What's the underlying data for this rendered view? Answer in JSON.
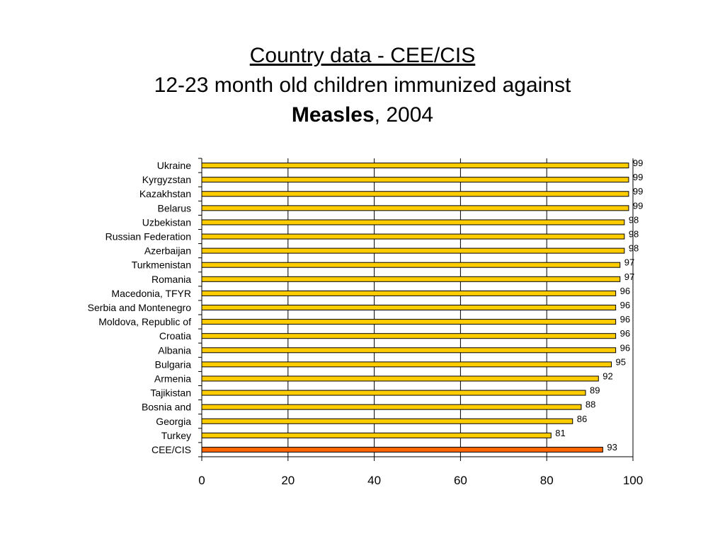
{
  "title": {
    "line1": "Country data - CEE/CIS",
    "line2": "12-23 month old children immunized against",
    "line3_bold": "Measles",
    "line3_rest": ", 2004"
  },
  "colors": {
    "bar": "#ffcc00",
    "highlight": "#ff6600",
    "outline": "#000000"
  },
  "chart_data": {
    "type": "bar",
    "orientation": "horizontal",
    "categories": [
      "Ukraine",
      "Kyrgyzstan",
      "Kazakhstan",
      "Belarus",
      "Uzbekistan",
      "Russian Federation",
      "Azerbaijan",
      "Turkmenistan",
      "Romania",
      "Macedonia, TFYR",
      "Serbia and Montenegro",
      "Moldova, Republic of",
      "Croatia",
      "Albania",
      "Bulgaria",
      "Armenia",
      "Tajikistan",
      "Bosnia and",
      "Georgia",
      "Turkey",
      "CEE/CIS"
    ],
    "values": [
      99,
      99,
      99,
      99,
      98,
      98,
      98,
      97,
      97,
      96,
      96,
      96,
      96,
      96,
      95,
      92,
      89,
      88,
      86,
      81,
      93
    ],
    "highlight_category": "CEE/CIS",
    "xlim": [
      0,
      100
    ],
    "xticks": [
      0,
      20,
      40,
      60,
      80,
      100
    ],
    "grid": "vertical"
  }
}
